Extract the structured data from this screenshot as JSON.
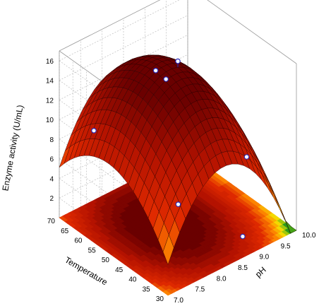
{
  "chart_data": {
    "type": "surface",
    "zlabel": "Enzyme activity (U/mL)",
    "xlabel": "pH",
    "ylabel": "Temperature",
    "x_ticks": [
      "7.0",
      "7.5",
      "8.0",
      "8.5",
      "9.0",
      "9.5",
      "10.0"
    ],
    "y_ticks": [
      "30",
      "35",
      "40",
      "45",
      "50",
      "55",
      "60",
      "65",
      "70"
    ],
    "z_ticks": [
      "2",
      "4",
      "6",
      "8",
      "10",
      "12",
      "14",
      "16"
    ],
    "xlim": [
      7.0,
      10.0
    ],
    "ylim": [
      30,
      70
    ],
    "zlim": [
      0,
      17
    ],
    "grid": true,
    "surface_model": {
      "form": "z = b0 - bx*(x - x0)^2 - by*(y - y0)^2",
      "b0": 16.2,
      "x0": 8.3,
      "y0": 52,
      "bx": 4.2,
      "by": 0.0123
    },
    "points": [
      {
        "x": 8.5,
        "y": 50,
        "z": 16.6
      },
      {
        "x": 8.3,
        "y": 55,
        "z": 15.1
      },
      {
        "x": 8.35,
        "y": 52,
        "z": 14.7
      },
      {
        "x": 7.3,
        "y": 62,
        "z": 9.8
      },
      {
        "x": 8.0,
        "y": 42,
        "z": 4.7
      },
      {
        "x": 9.6,
        "y": 42,
        "z": 6.0
      },
      {
        "x": 9.0,
        "y": 34,
        "z": 0.8
      }
    ],
    "colors": {
      "peak": "#6a0000",
      "high": "#b31200",
      "mid": "#e02a00",
      "low_mid": "#ff8c00",
      "low": "#f2e600",
      "lowest": "#2a9a1a",
      "point_stroke": "#2a2ab8"
    }
  }
}
